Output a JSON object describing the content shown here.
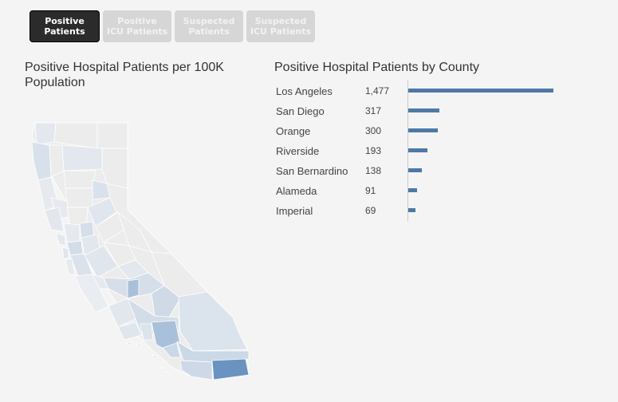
{
  "tabs": [
    {
      "line1": "Positive",
      "line2": "Patients",
      "active": true
    },
    {
      "line1": "Positive",
      "line2": "ICU Patients",
      "active": false
    },
    {
      "line1": "Suspected",
      "line2": "Patients",
      "active": false
    },
    {
      "line1": "Suspected",
      "line2": "ICU Patients",
      "active": false
    }
  ],
  "map": {
    "title": "Positive Hospital Patients per 100K Population"
  },
  "chart_data": {
    "type": "bar",
    "title": "Positive Hospital Patients by County",
    "categories": [
      "Los Angeles",
      "San Diego",
      "Orange",
      "Riverside",
      "San Bernardino",
      "Alameda",
      "Imperial"
    ],
    "value_labels": [
      "1,477",
      "317",
      "300",
      "193",
      "138",
      "91",
      "69"
    ],
    "values": [
      1477,
      317,
      300,
      193,
      138,
      91,
      69
    ],
    "orientation": "horizontal",
    "bar_color": "#4e79a7"
  }
}
